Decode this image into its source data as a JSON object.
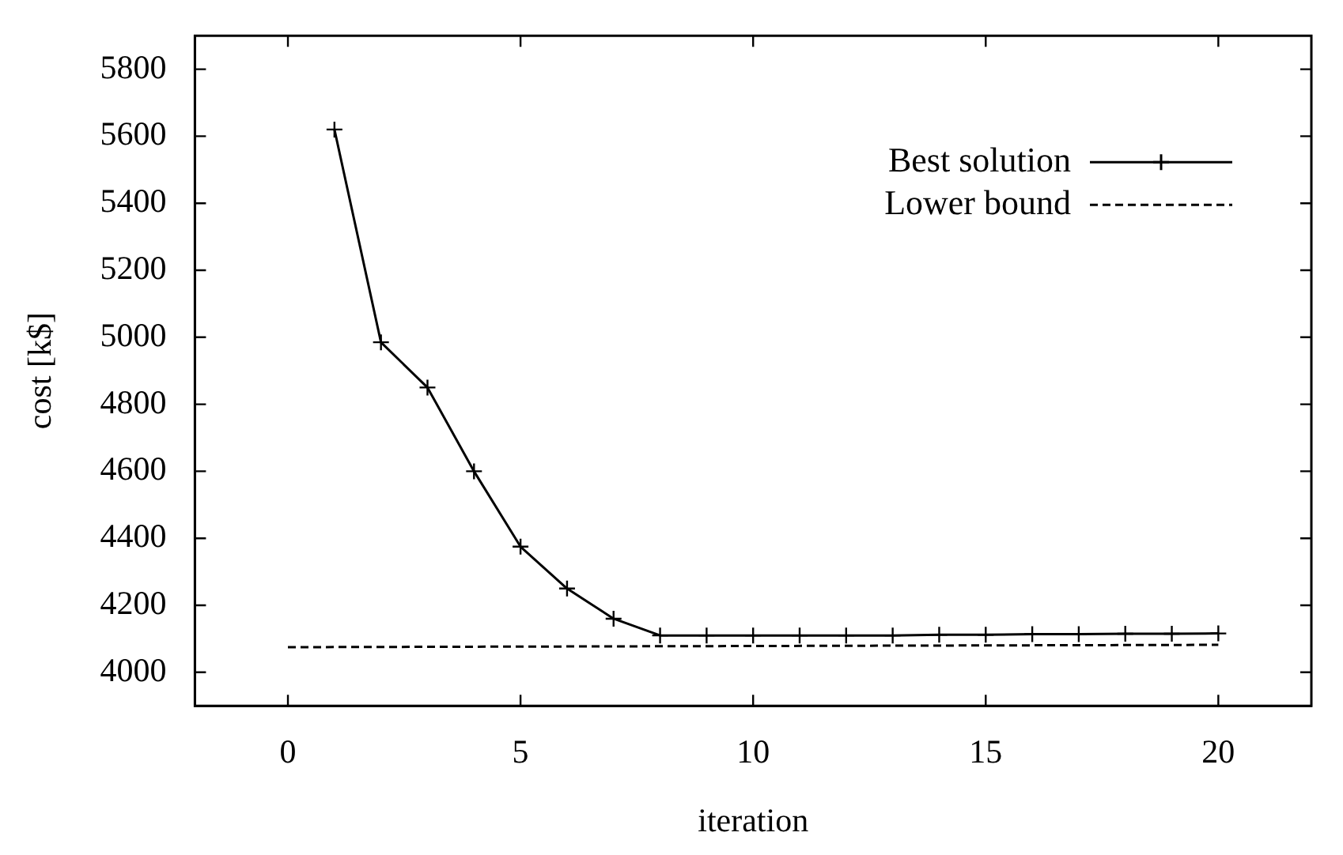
{
  "chart_data": {
    "type": "line",
    "xlabel": "iteration",
    "ylabel": "cost [k$]",
    "xlim": [
      -2,
      22
    ],
    "xticks": [
      0,
      5,
      10,
      15,
      20
    ],
    "ylim": [
      3900,
      5900
    ],
    "yticks": [
      4000,
      4200,
      4400,
      4600,
      4800,
      5000,
      5200,
      5400,
      5600,
      5800
    ],
    "grid": false,
    "legend": "top right",
    "series": [
      {
        "name": "Best solution",
        "color": "#000000",
        "marker": "cross",
        "line_style": "solid",
        "x": [
          1,
          2,
          3,
          4,
          5,
          6,
          7,
          8,
          9,
          10,
          11,
          12,
          13,
          14,
          15,
          16,
          17,
          18,
          19,
          20
        ],
        "values": [
          5620,
          4985,
          4850,
          4600,
          4375,
          4250,
          4160,
          4110,
          4110,
          4110,
          4110,
          4110,
          4110,
          4112,
          4112,
          4114,
          4114,
          4115,
          4115,
          4116
        ]
      },
      {
        "name": "Lower bound",
        "color": "#000000",
        "marker": "none",
        "line_style": "dashed",
        "x": [
          0,
          20
        ],
        "values": [
          4075,
          4082
        ]
      }
    ]
  }
}
